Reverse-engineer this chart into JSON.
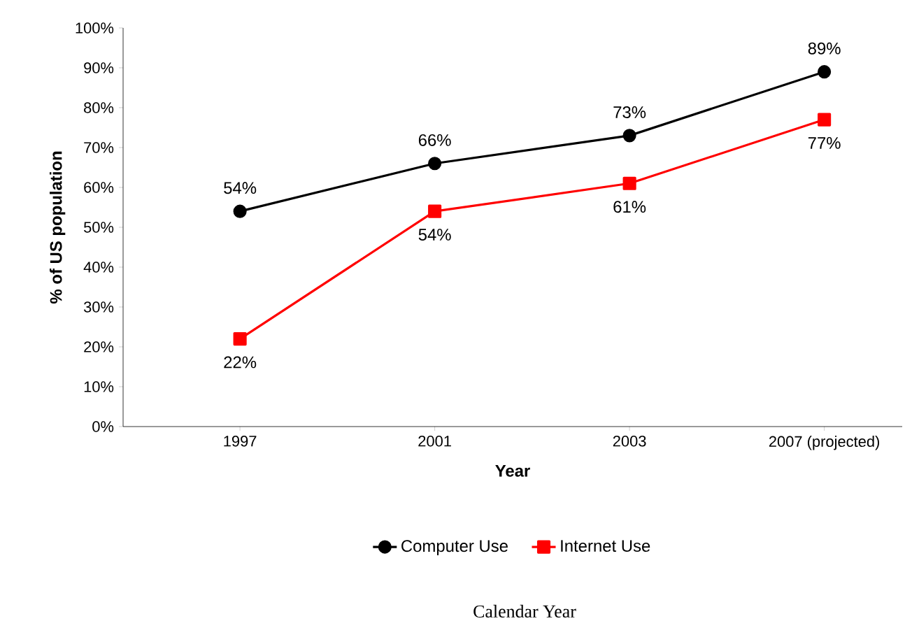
{
  "chart_data": {
    "type": "line",
    "xlabel": "Year",
    "ylabel": "% of US population",
    "categories": [
      "1997",
      "2001",
      "2003",
      "2007 (projected)"
    ],
    "series": [
      {
        "name": "Computer Use",
        "color": "#000000",
        "marker": "circle",
        "values": [
          54,
          66,
          73,
          89
        ],
        "value_labels": [
          "54%",
          "66%",
          "73%",
          "89%"
        ]
      },
      {
        "name": "Internet Use",
        "color": "#ff0000",
        "marker": "square",
        "values": [
          22,
          54,
          61,
          77
        ],
        "value_labels": [
          "22%",
          "54%",
          "61%",
          "77%"
        ]
      }
    ],
    "ylim": [
      0,
      100
    ],
    "yticks": [
      {
        "value": 0,
        "label": "0%"
      },
      {
        "value": 10,
        "label": "10%"
      },
      {
        "value": 20,
        "label": "20%"
      },
      {
        "value": 30,
        "label": "30%"
      },
      {
        "value": 40,
        "label": "40%"
      },
      {
        "value": 50,
        "label": "50%"
      },
      {
        "value": 60,
        "label": "60%"
      },
      {
        "value": 70,
        "label": "70%"
      },
      {
        "value": 80,
        "label": "80%"
      },
      {
        "value": 90,
        "label": "90%"
      },
      {
        "value": 100,
        "label": "100%"
      }
    ],
    "grid": false,
    "legend": "bottom",
    "line_style": "solid",
    "annotations": [
      "Calendar Year"
    ]
  }
}
